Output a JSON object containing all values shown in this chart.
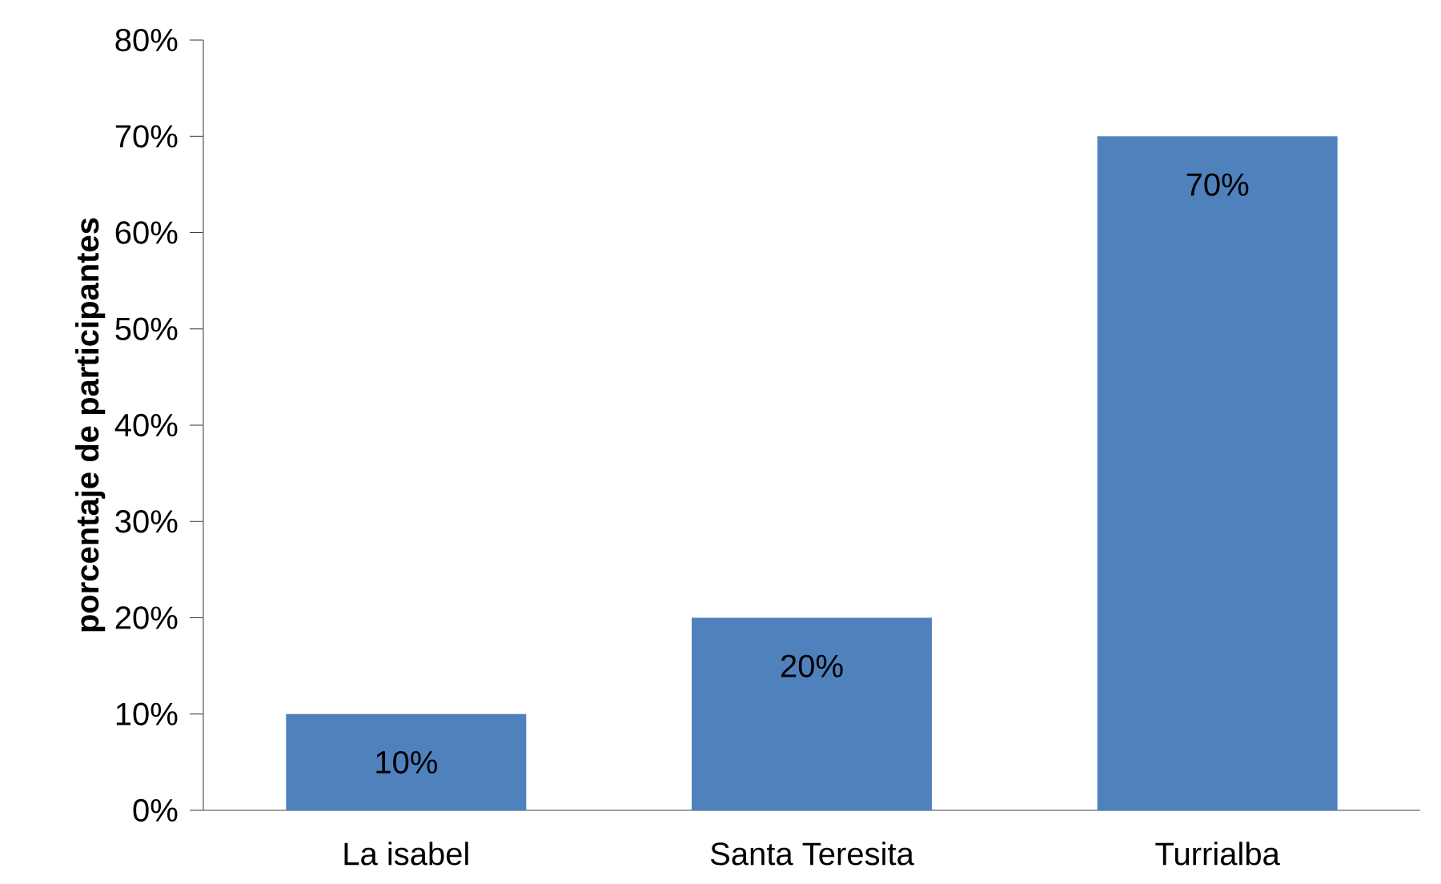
{
  "chart_data": {
    "type": "bar",
    "ylabel": "porcentaje de participantes",
    "categories": [
      "La isabel",
      "Santa Teresita",
      "Turrialba"
    ],
    "values": [
      10,
      20,
      70
    ],
    "value_labels": [
      "10%",
      "20%",
      "70%"
    ],
    "color": "#4f81bd",
    "ylim": [
      0,
      80
    ],
    "yticks": [
      {
        "value": 0,
        "label": "0%"
      },
      {
        "value": 10,
        "label": "10%"
      },
      {
        "value": 20,
        "label": "20%"
      },
      {
        "value": 30,
        "label": "30%"
      },
      {
        "value": 40,
        "label": "40%"
      },
      {
        "value": 50,
        "label": "50%"
      },
      {
        "value": 60,
        "label": "60%"
      },
      {
        "value": 70,
        "label": "70%"
      },
      {
        "value": 80,
        "label": "80%"
      }
    ]
  }
}
